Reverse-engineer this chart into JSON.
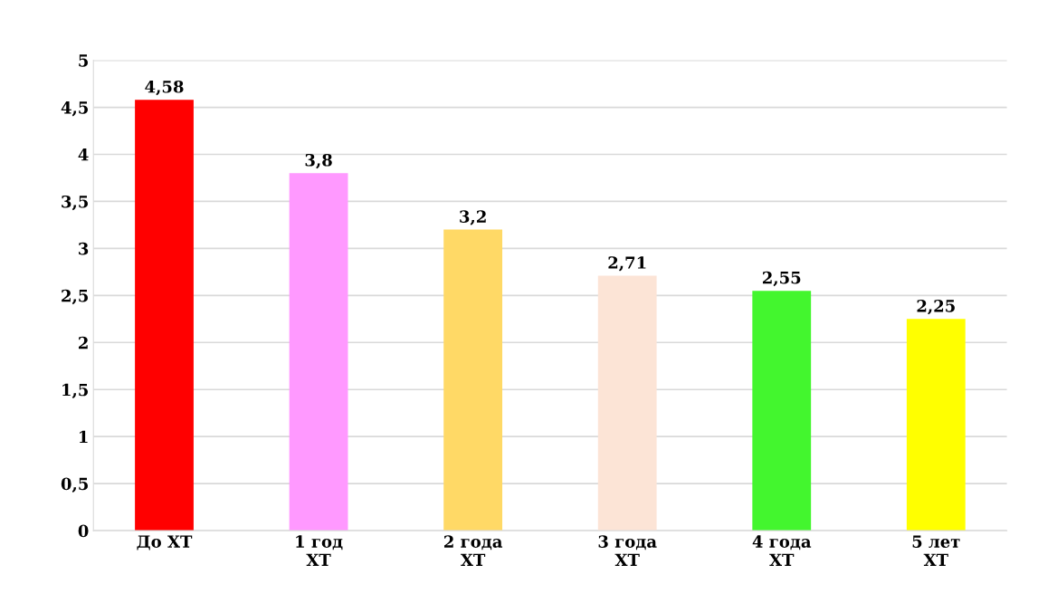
{
  "chart_data": {
    "type": "bar",
    "categories": [
      "До ХТ",
      "1 год\nХТ",
      "2 года\nХТ",
      "3 года\nХТ",
      "4 года\nХТ",
      "5 лет\nХТ"
    ],
    "values": [
      4.58,
      3.8,
      3.2,
      2.71,
      2.55,
      2.25
    ],
    "colors": [
      "#ff0000",
      "#ff99ff",
      "#ffd966",
      "#fce4d6",
      "#43f62e",
      "#ffff00"
    ],
    "value_labels": [
      "4,58",
      "3,8",
      "3,2",
      "2,71",
      "2,55",
      "2,25"
    ],
    "ylim": [
      0,
      5
    ],
    "yticks": [
      0,
      {
        "value": 0.5,
        "label": "0,5"
      },
      1,
      {
        "value": 1.5,
        "label": "1,5"
      },
      2,
      {
        "value": 2.5,
        "label": "2,5"
      },
      3,
      {
        "value": 3.5,
        "label": "3,5"
      },
      4,
      {
        "value": 4.5,
        "label": "4,5"
      },
      5
    ],
    "grid": "y"
  }
}
